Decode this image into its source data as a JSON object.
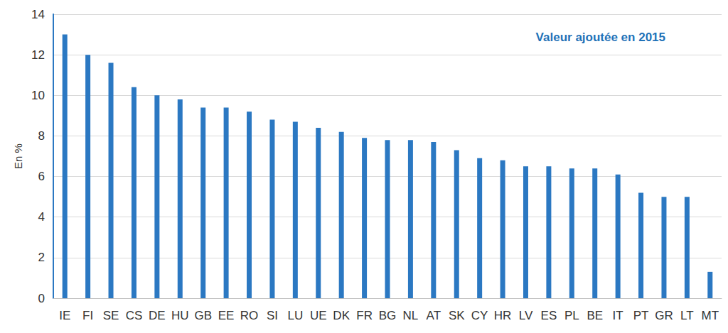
{
  "chart_data": {
    "type": "bar",
    "title": "Valeur ajoutée en 2015",
    "y_label": "En %",
    "categories": [
      "IE",
      "FI",
      "SE",
      "CS",
      "DE",
      "HU",
      "GB",
      "EE",
      "RO",
      "SI",
      "LU",
      "UE",
      "DK",
      "FR",
      "BG",
      "NL",
      "AT",
      "SK",
      "CY",
      "HR",
      "LV",
      "ES",
      "PL",
      "BE",
      "IT",
      "PT",
      "GR",
      "LT",
      "MT"
    ],
    "values": [
      13.0,
      12.0,
      11.6,
      10.4,
      10.0,
      9.8,
      9.4,
      9.4,
      9.2,
      8.8,
      8.7,
      8.4,
      8.2,
      7.9,
      7.8,
      7.8,
      7.7,
      7.3,
      6.9,
      6.8,
      6.5,
      6.5,
      6.4,
      6.4,
      6.1,
      5.2,
      5.0,
      5.0,
      1.3
    ],
    "color": "#2b78c2",
    "ylim": [
      0,
      14
    ],
    "yticks": [
      0,
      2,
      4,
      6,
      8,
      10,
      12,
      14
    ],
    "grid": true
  }
}
